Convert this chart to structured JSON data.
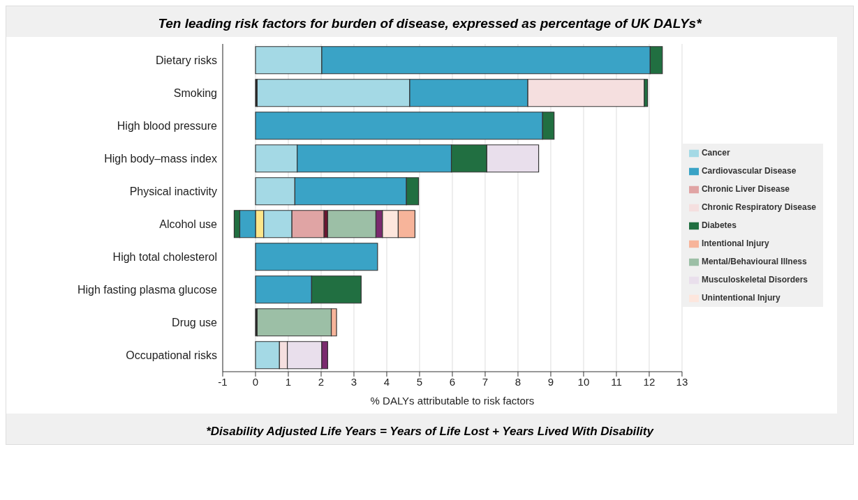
{
  "chart_data": {
    "type": "bar",
    "orientation": "horizontal",
    "stacked": true,
    "title": "Ten leading risk factors for burden of disease, expressed as percentage of UK DALYs*",
    "xlabel": "% DALYs attributable to risk factors",
    "annotations": [
      "*Disability Adjusted Life Years = Years of Life Lost + Years Lived With Disability"
    ],
    "categories": [
      "Dietary risks",
      "Smoking",
      "High blood pressure",
      "High body–mass index",
      "Physical inactivity",
      "Alcohol use",
      "High total cholesterol",
      "High fasting plasma glucose",
      "Drug use",
      "Occupational risks"
    ],
    "series": [
      {
        "color": "#222222",
        "values": [
          null,
          0.05,
          null,
          null,
          null,
          null,
          null,
          null,
          0.05,
          null
        ]
      },
      {
        "color": "#fde68a",
        "values": [
          null,
          null,
          null,
          null,
          null,
          0.25,
          null,
          null,
          null,
          null
        ]
      },
      {
        "name": "Cancer",
        "color": "#a4d9e5",
        "values": [
          2.02,
          4.65,
          null,
          1.27,
          1.2,
          0.86,
          null,
          null,
          null,
          0.73
        ]
      },
      {
        "name": "Cardiovascular Disease",
        "color": "#3aa3c6",
        "values": [
          10.01,
          3.6,
          8.75,
          4.7,
          3.4,
          -0.48,
          3.72,
          1.71,
          null,
          null
        ]
      },
      {
        "name": "Chronic Respiratory Disease",
        "color": "#f5dfdf",
        "values": [
          null,
          3.55,
          null,
          null,
          null,
          null,
          null,
          null,
          null,
          0.24
        ]
      },
      {
        "name": "Diabetes",
        "color": "#216f41",
        "values": [
          0.37,
          0.1,
          0.35,
          1.08,
          0.37,
          -0.17,
          null,
          1.51,
          null,
          null
        ]
      },
      {
        "name": "Musculoskeletal Disorders",
        "color": "#e9dfec",
        "values": [
          null,
          null,
          null,
          1.58,
          null,
          null,
          null,
          null,
          null,
          1.05
        ]
      },
      {
        "name": "Chronic Liver Disease",
        "color": "#e0a4a4",
        "values": [
          null,
          null,
          null,
          null,
          null,
          0.98,
          null,
          null,
          null,
          null
        ]
      },
      {
        "color": "#6b1530",
        "values": [
          null,
          null,
          null,
          null,
          null,
          0.11,
          null,
          null,
          null,
          null
        ]
      },
      {
        "name": "Mental/Behavioural Illness",
        "color": "#9cbfa6",
        "values": [
          null,
          null,
          null,
          null,
          null,
          1.47,
          null,
          null,
          2.26,
          null
        ]
      },
      {
        "color": "#7a2a6e",
        "values": [
          null,
          null,
          null,
          null,
          null,
          0.2,
          null,
          null,
          null,
          0.18
        ]
      },
      {
        "name": "Unintentional Injury",
        "color": "#fde6dd",
        "values": [
          null,
          null,
          null,
          null,
          null,
          0.48,
          null,
          null,
          null,
          null
        ]
      },
      {
        "name": "Intentional Injury",
        "color": "#f7b49a",
        "values": [
          null,
          null,
          null,
          null,
          null,
          0.51,
          null,
          null,
          0.16,
          null
        ]
      }
    ],
    "xlim": [
      -1,
      13
    ],
    "xticks": [
      -1,
      0,
      1,
      2,
      3,
      4,
      5,
      6,
      7,
      8,
      9,
      10,
      11,
      12,
      13
    ],
    "grid": "x",
    "legend": "right"
  }
}
